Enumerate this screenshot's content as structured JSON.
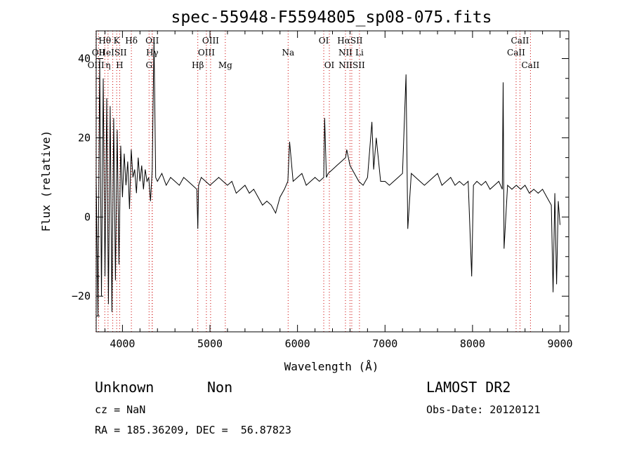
{
  "chart_data": {
    "type": "line",
    "title": "spec-55948-F5594805_sp08-075.fits",
    "xlabel": "Wavelength (Å)",
    "ylabel": "Flux (relative)",
    "xlim": [
      3700,
      9100
    ],
    "ylim": [
      -29,
      47
    ],
    "xticks": [
      4000,
      5000,
      6000,
      7000,
      8000,
      9000
    ],
    "yticks": [
      -20,
      0,
      20,
      40
    ],
    "grid": false,
    "series": [
      {
        "color": "#000000",
        "x": [
          3700,
          3720,
          3740,
          3760,
          3780,
          3800,
          3820,
          3840,
          3860,
          3880,
          3900,
          3920,
          3940,
          3960,
          3980,
          4000,
          4020,
          4040,
          4060,
          4080,
          4100,
          4120,
          4140,
          4160,
          4180,
          4200,
          4220,
          4240,
          4260,
          4280,
          4300,
          4320,
          4340,
          4360,
          4380,
          4400,
          4450,
          4500,
          4550,
          4600,
          4650,
          4700,
          4750,
          4800,
          4850,
          4861,
          4870,
          4900,
          4950,
          5000,
          5050,
          5100,
          5150,
          5200,
          5250,
          5300,
          5350,
          5400,
          5450,
          5500,
          5550,
          5600,
          5650,
          5700,
          5750,
          5800,
          5850,
          5890,
          5910,
          5950,
          6000,
          6050,
          6100,
          6150,
          6200,
          6250,
          6300,
          6310,
          6330,
          6350,
          6400,
          6450,
          6500,
          6550,
          6563,
          6600,
          6650,
          6700,
          6750,
          6800,
          6850,
          6870,
          6900,
          6950,
          7000,
          7050,
          7100,
          7150,
          7200,
          7240,
          7260,
          7300,
          7350,
          7400,
          7450,
          7500,
          7550,
          7600,
          7650,
          7700,
          7750,
          7800,
          7850,
          7900,
          7950,
          7990,
          8010,
          8050,
          8100,
          8150,
          8200,
          8250,
          8300,
          8340,
          8350,
          8360,
          8400,
          8450,
          8500,
          8550,
          8600,
          8650,
          8700,
          8750,
          8800,
          8850,
          8900,
          8920,
          8940,
          8960,
          8980,
          9000
        ],
        "y": [
          10,
          -25,
          40,
          -20,
          35,
          -15,
          30,
          -22,
          28,
          -24,
          25,
          -16,
          22,
          -12,
          18,
          5,
          16,
          8,
          14,
          2,
          17,
          10,
          12,
          6,
          15,
          9,
          13,
          7,
          12,
          9,
          10,
          4,
          12,
          45,
          10,
          9,
          11,
          8,
          10,
          9,
          8,
          10,
          9,
          8,
          7,
          -3,
          8,
          10,
          9,
          8,
          9,
          10,
          9,
          8,
          9,
          6,
          7,
          8,
          6,
          7,
          5,
          3,
          4,
          3,
          1,
          5,
          7,
          9,
          19,
          9,
          10,
          11,
          8,
          9,
          10,
          9,
          10,
          25,
          10,
          11,
          12,
          13,
          14,
          15,
          17,
          13,
          11,
          9,
          8,
          10,
          24,
          12,
          20,
          9,
          9,
          8,
          9,
          10,
          11,
          36,
          -3,
          11,
          10,
          9,
          8,
          9,
          10,
          11,
          8,
          9,
          10,
          8,
          9,
          8,
          9,
          -15,
          8,
          9,
          8,
          9,
          7,
          8,
          9,
          7,
          34,
          -8,
          8,
          7,
          8,
          7,
          8,
          6,
          7,
          6,
          7,
          5,
          3,
          -19,
          6,
          -17,
          4,
          -2
        ]
      }
    ],
    "lines": [
      {
        "label": "Hθ",
        "wave": 3798,
        "row": 1
      },
      {
        "label": "K",
        "wave": 3934,
        "row": 1
      },
      {
        "label": "Hδ",
        "wave": 4102,
        "row": 1
      },
      {
        "label": "OII",
        "wave": 4340,
        "row": 1
      },
      {
        "label": "OIII",
        "wave": 5007,
        "row": 1
      },
      {
        "label": "OI",
        "wave": 6300,
        "row": 1
      },
      {
        "label": "HαSII",
        "wave": 6600,
        "row": 1
      },
      {
        "label": "CaII",
        "wave": 8542,
        "row": 1
      },
      {
        "label": "OII",
        "wave": 3727,
        "row": 2
      },
      {
        "label": "HeISII",
        "wave": 3889,
        "row": 2
      },
      {
        "label": "Hγ",
        "wave": 4340,
        "row": 2
      },
      {
        "label": "OIII",
        "wave": 4959,
        "row": 2
      },
      {
        "label": "Na",
        "wave": 5893,
        "row": 2
      },
      {
        "label": "NII",
        "wave": 6548,
        "row": 2
      },
      {
        "label": "Li",
        "wave": 6708,
        "row": 2
      },
      {
        "label": "CaII",
        "wave": 8498,
        "row": 2
      },
      {
        "label": "OIII",
        "wave": 3697,
        "row": 3
      },
      {
        "label": "η",
        "wave": 3835,
        "row": 3
      },
      {
        "label": "H",
        "wave": 3968,
        "row": 3
      },
      {
        "label": "G",
        "wave": 4304,
        "row": 3
      },
      {
        "label": "Hβ",
        "wave": 4861,
        "row": 3
      },
      {
        "label": "Mg",
        "wave": 5175,
        "row": 3
      },
      {
        "label": "OI",
        "wave": 6364,
        "row": 3
      },
      {
        "label": "NIISII",
        "wave": 6620,
        "row": 3
      },
      {
        "label": "CaII",
        "wave": 8662,
        "row": 3
      }
    ]
  },
  "footer": {
    "classification": "Unknown",
    "subclass": "Non",
    "cz": "cz = NaN",
    "coords": "RA = 185.36209, DEC =  56.87823",
    "survey": "LAMOST DR2",
    "obs_date": "Obs-Date: 20120121"
  }
}
